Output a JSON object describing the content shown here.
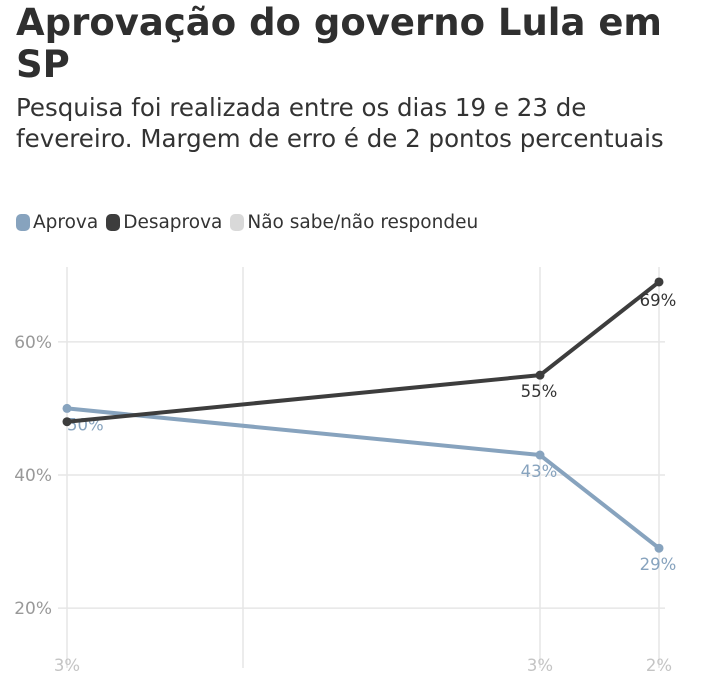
{
  "title": "Aprovação do governo Lula em SP",
  "subtitle": "Pesquisa foi realizada entre os dias 19 e 23 de fevereiro. Margem de erro é de 2 pontos percentuais",
  "legend": [
    {
      "label": "Aprova",
      "color": "#87a3be"
    },
    {
      "label": "Desaprova",
      "color": "#3d3d3d"
    },
    {
      "label": "Não sabe/não respondeu",
      "color": "#d9d9d9"
    }
  ],
  "chart_data": {
    "type": "line",
    "title": "Aprovação do governo Lula em SP",
    "subtitle": "Pesquisa foi realizada entre os dias 19 e 23 de fevereiro. Margem de erro é de 2 pontos percentuais",
    "ylim": [
      11,
      72
    ],
    "yticks": [
      20,
      40,
      60
    ],
    "ytick_labels": [
      "20%",
      "40%",
      "60%"
    ],
    "grid": true,
    "legend_position": "top-left",
    "series": [
      {
        "name": "Aprova",
        "color": "#87a3be",
        "values": [
          50,
          43,
          29
        ],
        "labels": [
          "50%",
          "43%",
          "29%"
        ],
        "label_pos": "below"
      },
      {
        "name": "Desaprova",
        "color": "#3d3d3d",
        "values": [
          48,
          55,
          69
        ],
        "labels": [
          "",
          "55%",
          "69%"
        ],
        "label_pos": "below"
      }
    ],
    "bottom_labels": [
      "3%",
      "3%",
      "2%"
    ]
  }
}
